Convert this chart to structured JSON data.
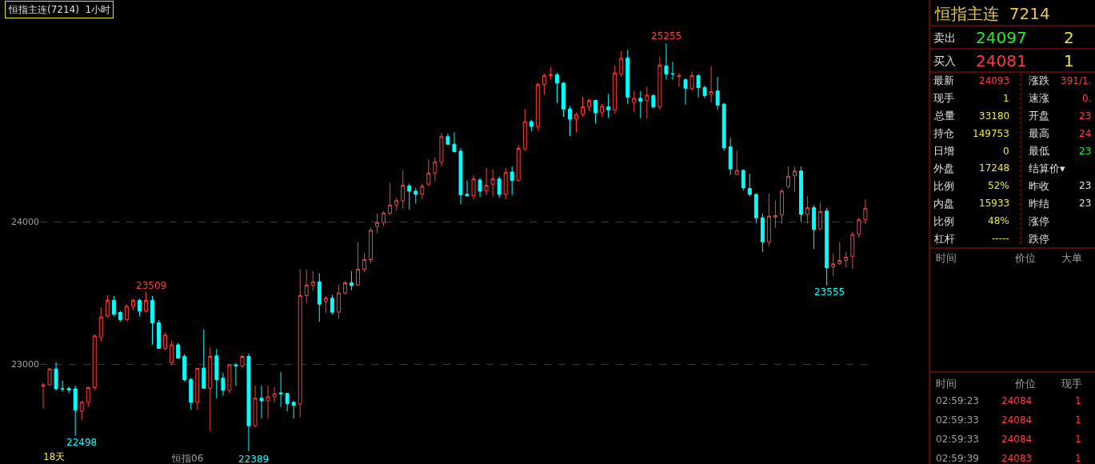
{
  "chart_data": [
    {
      "type": "candlestick",
      "title": "恒指主连(7214)  1小时",
      "categories": [
        null,
        null,
        null,
        null,
        null,
        null,
        null,
        null,
        null,
        null,
        null,
        null,
        null,
        null,
        null,
        null,
        null,
        null,
        null,
        null,
        null,
        null,
        null,
        null,
        null,
        null,
        null,
        null,
        null,
        null,
        null,
        null,
        null,
        null,
        null,
        null,
        null,
        null,
        null,
        null,
        null,
        null,
        null,
        null,
        null,
        null,
        null,
        null,
        null,
        null,
        null,
        null,
        null,
        null,
        null,
        null,
        null,
        null,
        null,
        null,
        null,
        null,
        null,
        null,
        null,
        null,
        null,
        null,
        null,
        null,
        null,
        null,
        null,
        null,
        null,
        null,
        null,
        null,
        null,
        null,
        null,
        null,
        null,
        null,
        null,
        null,
        null,
        null,
        null,
        null,
        null,
        null,
        null,
        null,
        null,
        null,
        null,
        null,
        null,
        null,
        null,
        null,
        null,
        null,
        null,
        null,
        null,
        null,
        null,
        null,
        null,
        null,
        null,
        null,
        null,
        null,
        null,
        null,
        null,
        null,
        null,
        null,
        null,
        null,
        null,
        null,
        null,
        null,
        null
      ],
      "ohlc": [
        [
          22846,
          22870,
          22690,
          22856
        ],
        [
          22856,
          22975,
          22850,
          22968
        ],
        [
          22968,
          23015,
          22815,
          22828
        ],
        [
          22828,
          22885,
          22810,
          22828
        ],
        [
          22830,
          22845,
          22800,
          22820
        ],
        [
          22828,
          22850,
          22498,
          22678
        ],
        [
          22670,
          22745,
          22610,
          22734
        ],
        [
          22734,
          22845,
          22700,
          22837
        ],
        [
          22837,
          23210,
          22820,
          23200
        ],
        [
          23190,
          23400,
          23160,
          23333
        ],
        [
          23340,
          23485,
          23330,
          23450
        ],
        [
          23450,
          23480,
          23340,
          23352
        ],
        [
          23365,
          23375,
          23300,
          23315
        ],
        [
          23315,
          23420,
          23305,
          23408
        ],
        [
          23408,
          23460,
          23380,
          23450
        ],
        [
          23450,
          23460,
          23340,
          23375
        ],
        [
          23375,
          23509,
          23365,
          23450
        ],
        [
          23450,
          23480,
          23140,
          23292
        ],
        [
          23292,
          23310,
          23110,
          23112
        ],
        [
          23112,
          23225,
          23100,
          23206
        ],
        [
          23011,
          23165,
          22995,
          23137
        ],
        [
          23137,
          23150,
          23040,
          23043
        ],
        [
          23056,
          23070,
          22880,
          22893
        ],
        [
          22893,
          22905,
          22680,
          22734
        ],
        [
          22734,
          22975,
          22680,
          22972
        ],
        [
          22974,
          23245,
          22830,
          22832
        ],
        [
          22832,
          23120,
          22530,
          23056
        ],
        [
          23060,
          23110,
          22760,
          22893
        ],
        [
          22903,
          22940,
          22780,
          22818
        ],
        [
          22818,
          23000,
          22800,
          22996
        ],
        [
          22996,
          23010,
          22850,
          22989
        ],
        [
          22989,
          23070,
          22975,
          23056
        ],
        [
          23056,
          23075,
          22389,
          22569
        ],
        [
          22569,
          22850,
          22555,
          22762
        ],
        [
          22762,
          22850,
          22620,
          22744
        ],
        [
          22744,
          22850,
          22620,
          22772
        ],
        [
          22772,
          22840,
          22730,
          22794
        ],
        [
          22800,
          22945,
          22700,
          22794
        ],
        [
          22796,
          22800,
          22670,
          22725
        ],
        [
          22734,
          22740,
          22620,
          22712
        ],
        [
          22720,
          23670,
          22630,
          23483
        ],
        [
          23483,
          23665,
          23430,
          23557
        ],
        [
          23557,
          23655,
          23520,
          23580
        ],
        [
          23580,
          23640,
          23300,
          23423
        ],
        [
          23445,
          23480,
          23360,
          23465
        ],
        [
          23465,
          23490,
          23350,
          23367
        ],
        [
          23367,
          23560,
          23320,
          23502
        ],
        [
          23502,
          23585,
          23490,
          23573
        ],
        [
          23573,
          23655,
          23520,
          23554
        ],
        [
          23558,
          23860,
          23550,
          23669
        ],
        [
          23669,
          23780,
          23650,
          23736
        ],
        [
          23736,
          23960,
          23710,
          23942
        ],
        [
          23970,
          24060,
          23920,
          23996
        ],
        [
          23996,
          24075,
          23970,
          24063
        ],
        [
          24063,
          24275,
          24050,
          24119
        ],
        [
          24119,
          24170,
          24080,
          24150
        ],
        [
          24150,
          24365,
          24095,
          24258
        ],
        [
          24254,
          24270,
          24087,
          24217
        ],
        [
          24217,
          24240,
          24130,
          24195
        ],
        [
          24195,
          24270,
          24160,
          24251
        ],
        [
          24266,
          24440,
          24250,
          24344
        ],
        [
          24344,
          24455,
          24290,
          24423
        ],
        [
          24420,
          24625,
          24390,
          24600
        ],
        [
          24600,
          24620,
          24545,
          24547
        ],
        [
          24547,
          24630,
          24490,
          24494
        ],
        [
          24498,
          24520,
          24125,
          24191
        ],
        [
          24195,
          24292,
          24180,
          24185
        ],
        [
          24185,
          24330,
          24160,
          24303
        ],
        [
          24295,
          24310,
          24175,
          24217
        ],
        [
          24220,
          24380,
          24190,
          24258
        ],
        [
          24266,
          24370,
          24180,
          24303
        ],
        [
          24303,
          24320,
          24170,
          24195
        ],
        [
          24195,
          24380,
          24160,
          24348
        ],
        [
          24352,
          24390,
          24190,
          24292
        ],
        [
          24292,
          24540,
          24285,
          24517
        ],
        [
          24513,
          24795,
          24500,
          24705
        ],
        [
          24705,
          24720,
          24640,
          24672
        ],
        [
          24670,
          24980,
          24640,
          24966
        ],
        [
          24966,
          25045,
          24895,
          25028
        ],
        [
          25028,
          25090,
          25000,
          25034
        ],
        [
          25034,
          25050,
          24837,
          24976
        ],
        [
          24976,
          24985,
          24740,
          24794
        ],
        [
          24794,
          24815,
          24605,
          24723
        ],
        [
          24723,
          24770,
          24630,
          24756
        ],
        [
          24760,
          24880,
          24740,
          24809
        ],
        [
          24809,
          24865,
          24780,
          24854
        ],
        [
          24854,
          24860,
          24693,
          24768
        ],
        [
          24772,
          24830,
          24740,
          24813
        ],
        [
          24809,
          24900,
          24730,
          24788
        ],
        [
          24788,
          25100,
          24760,
          25047
        ],
        [
          25041,
          25200,
          25020,
          25150
        ],
        [
          25153,
          25210,
          24830,
          24878
        ],
        [
          24840,
          24920,
          24775,
          24869
        ],
        [
          24869,
          24920,
          24730,
          24850
        ],
        [
          24854,
          24950,
          24727,
          24891
        ],
        [
          24888,
          24900,
          24800,
          24809
        ],
        [
          24809,
          25160,
          24790,
          25103
        ],
        [
          25097,
          25255,
          25000,
          25041
        ],
        [
          25041,
          25125,
          25000,
          25041
        ],
        [
          25022,
          25047,
          24950,
          25028
        ],
        [
          25000,
          25010,
          24825,
          24940
        ],
        [
          24940,
          25055,
          24920,
          25028
        ],
        [
          25028,
          25040,
          24875,
          24944
        ],
        [
          24944,
          24960,
          24870,
          24888
        ],
        [
          24897,
          25095,
          24840,
          24916
        ],
        [
          24921,
          25020,
          24790,
          24822
        ],
        [
          24828,
          24837,
          24500,
          24522
        ],
        [
          24528,
          24590,
          24330,
          24373
        ],
        [
          24335,
          24500,
          24330,
          24363
        ],
        [
          24363,
          24370,
          24220,
          24241
        ],
        [
          24236,
          24340,
          24180,
          24194
        ],
        [
          24194,
          24200,
          23990,
          24030
        ],
        [
          24030,
          24060,
          23790,
          23861
        ],
        [
          23861,
          24200,
          23830,
          24041
        ],
        [
          24035,
          24150,
          23960,
          24045
        ],
        [
          24049,
          24230,
          23990,
          24217
        ],
        [
          24250,
          24390,
          24236,
          24322
        ],
        [
          24325,
          24390,
          24210,
          24359
        ],
        [
          24359,
          24390,
          24000,
          24054
        ],
        [
          24054,
          24180,
          23990,
          24101
        ],
        [
          24101,
          24120,
          23810,
          23947
        ],
        [
          23951,
          24140,
          23945,
          24073
        ],
        [
          24078,
          24100,
          23555,
          23679
        ],
        [
          23685,
          23780,
          23620,
          23707
        ],
        [
          23707,
          23860,
          23700,
          23730
        ],
        [
          23730,
          23790,
          23680,
          23754
        ],
        [
          23760,
          23930,
          23672,
          23913
        ],
        [
          23913,
          24030,
          23890,
          24016
        ],
        [
          24016,
          24160,
          23985,
          24097
        ]
      ],
      "ylim": [
        22300,
        25560
      ],
      "yticks": [
        23000,
        24000
      ],
      "grid": "y",
      "tick_labels": "y",
      "annotations": [
        "25255",
        "23509",
        "22498",
        "22389",
        "23555",
        "18天",
        "恒指06"
      ]
    },
    {
      "type": "other",
      "title": "恒指主连  7214",
      "annotations": [
        "卖出",
        "24097",
        "2",
        "买入",
        "24081",
        "1",
        "最新",
        "24093",
        "涨跌",
        "391/1.",
        "现手",
        "1",
        "速涨",
        "0.",
        "总量",
        "33180",
        "开盘",
        "23",
        "持仓",
        "149753",
        "最高",
        "24",
        "日增",
        "0",
        "最低",
        "23",
        "外盘",
        "17248",
        "结算价▾",
        "比例",
        "52%",
        "昨收",
        "23",
        "内盘",
        "15933",
        "昨结",
        "23",
        "比例",
        "48%",
        "涨停",
        "杠杆",
        "-----",
        "跌停",
        "时间",
        "价位",
        "大单",
        "时间",
        "价位",
        "现手",
        "02:59:23",
        "24084",
        "1",
        "02:59:33",
        "24084",
        "1",
        "02:59:33",
        "24084",
        "1",
        "02:59:39",
        "24083",
        "1"
      ]
    }
  ]
}
